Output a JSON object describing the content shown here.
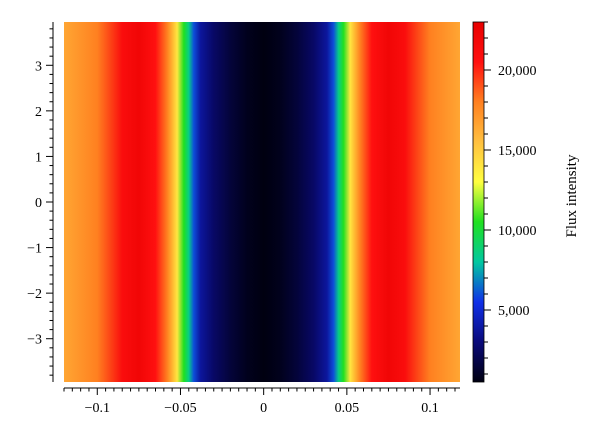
{
  "chart_data": {
    "type": "heatmap",
    "title": "",
    "xlabel": "",
    "ylabel": "",
    "xlim": [
      -0.12,
      0.118
    ],
    "ylim": [
      -3.95,
      3.95
    ],
    "x_ticks": [
      {
        "value": -0.1,
        "label": "−0.1"
      },
      {
        "value": -0.05,
        "label": "−0.05"
      },
      {
        "value": 0,
        "label": "0"
      },
      {
        "value": 0.05,
        "label": "0.05"
      },
      {
        "value": 0.1,
        "label": "0.1"
      }
    ],
    "y_ticks": [
      {
        "value": 3,
        "label": "3"
      },
      {
        "value": 2,
        "label": "2"
      },
      {
        "value": 1,
        "label": "1"
      },
      {
        "value": 0,
        "label": "0"
      },
      {
        "value": -1,
        "label": "−1"
      },
      {
        "value": -2,
        "label": "−2"
      },
      {
        "value": -3,
        "label": "−3"
      }
    ],
    "colorbar": {
      "label": "Flux intensity",
      "range": [
        500,
        23000
      ],
      "ticks": [
        {
          "value": 5000,
          "label": "5,000"
        },
        {
          "value": 10000,
          "label": "10,000"
        },
        {
          "value": 15000,
          "label": "15,000"
        },
        {
          "value": 20000,
          "label": "20,000"
        }
      ],
      "colormap": [
        "#000010",
        "#0a0a7a",
        "#1030e8",
        "#00c8a0",
        "#20e020",
        "#ffff40",
        "#ffc040",
        "#ff8020",
        "#ff1010",
        "#e80000"
      ]
    },
    "profile": {
      "x": [
        -0.12,
        -0.1,
        -0.085,
        -0.075,
        -0.065,
        -0.058,
        -0.052,
        -0.048,
        -0.045,
        -0.042,
        -0.038,
        -0.03,
        -0.02,
        -0.01,
        0,
        0.01,
        0.02,
        0.03,
        0.038,
        0.042,
        0.045,
        0.048,
        0.052,
        0.058,
        0.065,
        0.075,
        0.085,
        0.1,
        0.118
      ],
      "flux": [
        16500,
        18000,
        21000,
        22000,
        20500,
        18000,
        14000,
        10500,
        8500,
        6000,
        3800,
        2500,
        1500,
        800,
        500,
        800,
        1500,
        2500,
        3800,
        6000,
        8500,
        10500,
        14000,
        18000,
        20500,
        22000,
        21000,
        18000,
        16500
      ]
    }
  }
}
